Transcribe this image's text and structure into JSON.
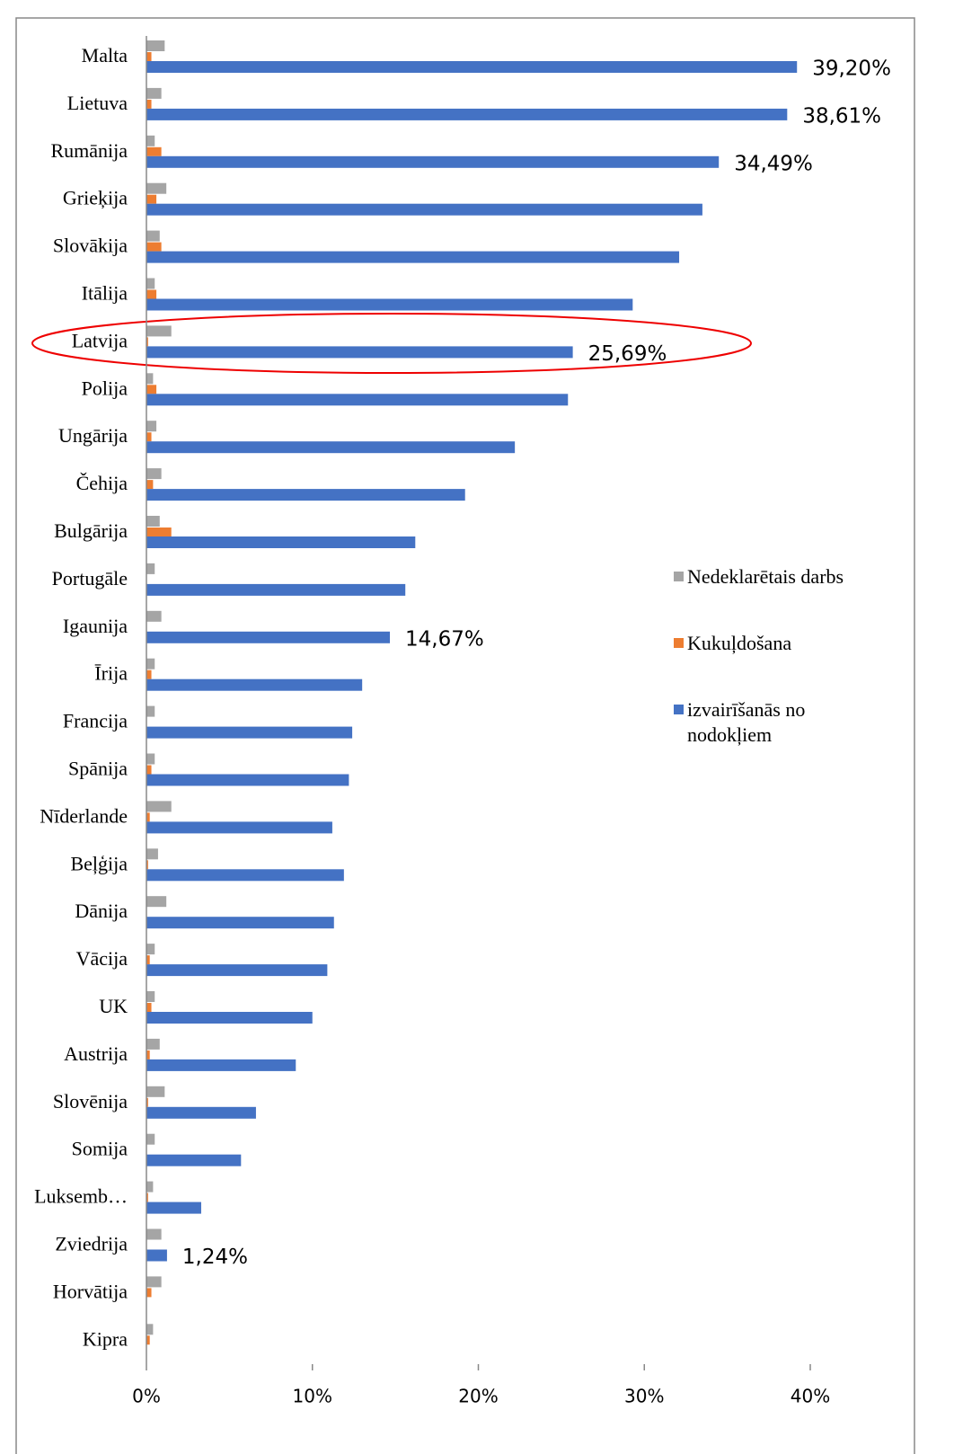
{
  "chart_data": {
    "type": "barh",
    "categories": [
      "Malta",
      "Lietuva",
      "Rumānija",
      "Grieķija",
      "Slovākija",
      "Itālija",
      "Latvija",
      "Polija",
      "Ungārija",
      "Čehija",
      "Bulgārija",
      "Portugāle",
      "Igaunija",
      "Īrija",
      "Francija",
      "Spānija",
      "Nīderlande",
      "Beļģija",
      "Dānija",
      "Vācija",
      "UK",
      "Austrija",
      "Slovēnija",
      "Somija",
      "Luksemb…",
      "Zviedrija",
      "Horvātija",
      "Kipra"
    ],
    "series": [
      {
        "name": "Nedeklarētais darbs",
        "color": "#a5a5a5",
        "values": [
          1.1,
          0.9,
          0.5,
          1.2,
          0.8,
          0.5,
          1.5,
          0.4,
          0.6,
          0.9,
          0.8,
          0.5,
          0.9,
          0.5,
          0.5,
          0.5,
          1.5,
          0.7,
          1.2,
          0.5,
          0.5,
          0.8,
          1.1,
          0.5,
          0.4,
          0.9,
          0.9,
          0.4
        ]
      },
      {
        "name": "Kukuļdošana",
        "color": "#ed7d31",
        "values": [
          0.3,
          0.3,
          0.9,
          0.6,
          0.9,
          0.6,
          0.1,
          0.6,
          0.3,
          0.4,
          1.5,
          0,
          0,
          0.3,
          0,
          0.3,
          0.2,
          0.1,
          0,
          0.2,
          0.3,
          0.2,
          0.1,
          0,
          0.1,
          0,
          0.3,
          0.2
        ]
      },
      {
        "name": "izvairīšanās no nodokļiem",
        "color": "#4472c4",
        "values": [
          39.2,
          38.61,
          34.49,
          33.5,
          32.1,
          29.3,
          25.69,
          25.4,
          22.2,
          19.2,
          16.2,
          15.6,
          14.67,
          13.0,
          12.4,
          12.2,
          11.2,
          11.9,
          11.3,
          10.9,
          10.0,
          9.0,
          6.6,
          5.7,
          3.3,
          1.24,
          0,
          0
        ],
        "value_labels": [
          "39,20%",
          "38,61%",
          "34,49%",
          null,
          null,
          null,
          "25,69%",
          null,
          null,
          null,
          null,
          null,
          "14,67%",
          null,
          null,
          null,
          null,
          null,
          null,
          null,
          null,
          null,
          null,
          null,
          null,
          "1,24%",
          null,
          null
        ]
      }
    ],
    "xlim": [
      0,
      40
    ],
    "xticks": [
      {
        "value": 0,
        "label": "0%"
      },
      {
        "value": 10,
        "label": "10%"
      },
      {
        "value": 20,
        "label": "20%"
      },
      {
        "value": 30,
        "label": "30%"
      },
      {
        "value": 40,
        "label": "40%"
      }
    ]
  }
}
